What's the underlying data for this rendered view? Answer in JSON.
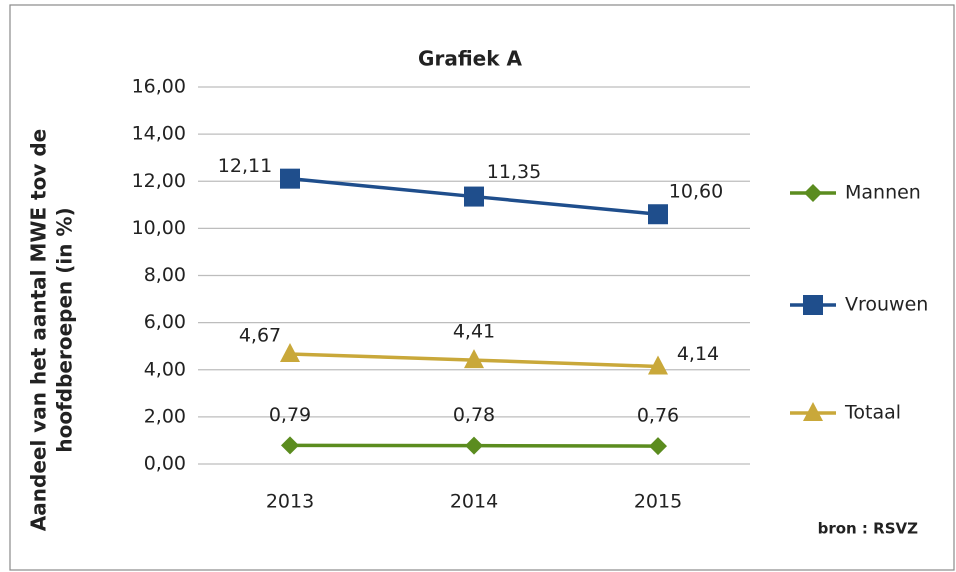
{
  "chart_data": {
    "type": "line",
    "title": "Grafiek A",
    "y_label": [
      "Aandeel van het aantal MWE tov de",
      "hoofdberoepen (in %)"
    ],
    "source": "bron : RSVZ",
    "categories": [
      "2013",
      "2014",
      "2015"
    ],
    "series": [
      {
        "name": "Mannen",
        "color": "#5b8c1f",
        "marker": "diamond",
        "values": [
          0.79,
          0.78,
          0.76
        ],
        "value_labels": [
          "0,79",
          "0,78",
          "0,76"
        ]
      },
      {
        "name": "Vrouwen",
        "color": "#1f4e8c",
        "marker": "square",
        "values": [
          12.11,
          11.35,
          10.6
        ],
        "value_labels": [
          "12,11",
          "11,35",
          "10,60"
        ]
      },
      {
        "name": "Totaal",
        "color": "#c9a83a",
        "marker": "triangle",
        "values": [
          4.67,
          4.41,
          4.14
        ],
        "value_labels": [
          "4,67",
          "4,41",
          "4,14"
        ]
      }
    ],
    "ylim": [
      0,
      16
    ],
    "yticks": [
      {
        "value": 0,
        "label": "0,00"
      },
      {
        "value": 2,
        "label": "2,00"
      },
      {
        "value": 4,
        "label": "4,00"
      },
      {
        "value": 6,
        "label": "6,00"
      },
      {
        "value": 8,
        "label": "8,00"
      },
      {
        "value": 10,
        "label": "10,00"
      },
      {
        "value": 12,
        "label": "12,00"
      },
      {
        "value": 14,
        "label": "14,00"
      },
      {
        "value": 16,
        "label": "16,00"
      }
    ],
    "grid": true,
    "legend": "right"
  }
}
